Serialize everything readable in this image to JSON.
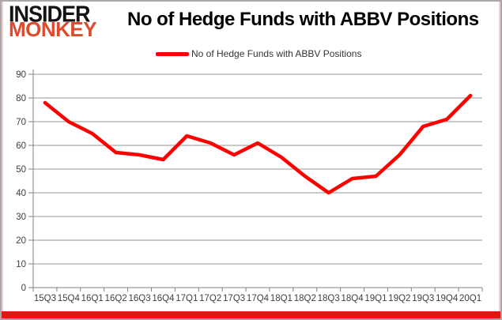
{
  "header": {
    "logo_line1": "INSIDER",
    "logo_line2": "MONKEY",
    "title": "No of Hedge Funds with ABBV Positions"
  },
  "legend": {
    "label": "No of Hedge Funds with ABBV Positions"
  },
  "colors": {
    "series_line": "#ff0000",
    "logo_black": "#141414",
    "logo_red": "#dd4a2c",
    "bottom_bar": "#e81414",
    "gridline": "#969696",
    "axis": "#808080",
    "tick_label": "#3f3f3f",
    "frame_border": "#a8a8a8",
    "frame_inner_tint": "#f6cdcd"
  },
  "chart_data": {
    "type": "line",
    "title": "No of Hedge Funds with ABBV Positions",
    "categories": [
      "15Q3",
      "15Q4",
      "16Q1",
      "16Q2",
      "16Q3",
      "16Q4",
      "17Q1",
      "17Q2",
      "17Q3",
      "17Q4",
      "18Q1",
      "18Q2",
      "18Q3",
      "18Q4",
      "19Q1",
      "19Q2",
      "19Q3",
      "19Q4",
      "20Q1"
    ],
    "series": [
      {
        "name": "No of Hedge Funds with ABBV Positions",
        "values": [
          78,
          70,
          65,
          57,
          56,
          54,
          64,
          61,
          56,
          61,
          55,
          47,
          40,
          46,
          47,
          56,
          68,
          71,
          81
        ]
      }
    ],
    "ylim": [
      0,
      90
    ],
    "ytick_step": 10,
    "ytick_labels": [
      "0",
      "10",
      "20",
      "30",
      "40",
      "50",
      "60",
      "70",
      "80",
      "90"
    ],
    "grid": true,
    "legend_position": "top-center",
    "xlabel": "",
    "ylabel": ""
  }
}
